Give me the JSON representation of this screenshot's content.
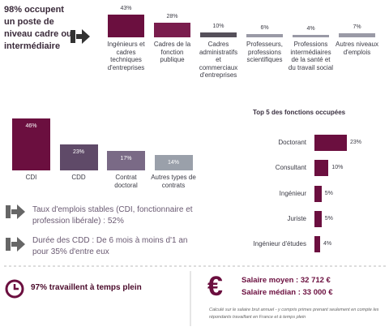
{
  "intro": "98% occupent un poste de niveau cadre ou intermédiaire",
  "chart_data": [
    {
      "type": "bar",
      "categories": [
        "Ingénieurs et cadres techniques d'entreprises",
        "Cadres de la fonction publique",
        "Cadres administratifs et commerciaux d'entreprises",
        "Professeurs, professions scientifiques",
        "Professions intermédiaires de la santé et du travail social",
        "Autres niveaux d'emplois"
      ],
      "values": [
        43,
        28,
        10,
        6,
        4,
        7
      ],
      "value_labels": [
        "43%",
        "28%",
        "10%",
        "6%",
        "4%",
        "7%"
      ],
      "colors": [
        "#6b0f3f",
        "#7a1d4d",
        "#55505a",
        "#9a9aa6",
        "#9a9aa6",
        "#9a9aa6"
      ]
    },
    {
      "type": "bar",
      "categories": [
        "CDI",
        "CDD",
        "Contrat doctoral",
        "Autres types de contrats"
      ],
      "values": [
        46,
        23,
        17,
        14
      ],
      "value_labels": [
        "46%",
        "23%",
        "17%",
        "14%"
      ],
      "colors": [
        "#6b0f3f",
        "#5f4a68",
        "#7a6a86",
        "#9aa0aa"
      ]
    },
    {
      "type": "hbar",
      "title": "Top 5 des fonctions occupées",
      "categories": [
        "Doctorant",
        "Consultant",
        "Ingénieur",
        "Juriste",
        "Ingénieur d'études"
      ],
      "values": [
        23,
        10,
        5,
        5,
        4
      ],
      "value_labels": [
        "23%",
        "10%",
        "5%",
        "5%",
        "4%"
      ],
      "colors": [
        "#6b0f3f",
        "#6b0f3f",
        "#6b0f3f",
        "#6b0f3f",
        "#6b0f3f"
      ]
    }
  ],
  "stable_jobs": "Taux d'emplois stables (CDI, fonctionnaire et profession libérale) : 52%",
  "cdd_duration": "Durée des CDD : De 6 mois à moins d'1 an pour 35% d'entre eux",
  "full_time": "97% travaillent à temps plein",
  "currency": "€",
  "salary_mean": "Salaire moyen :  32 712 €",
  "salary_median": "Salaire médian : 33 000 €",
  "footnote": "Calculé sur le salaire brut annuel - y compris primes prenant seulement en compte les répondants travaillant en France et à temps plein"
}
